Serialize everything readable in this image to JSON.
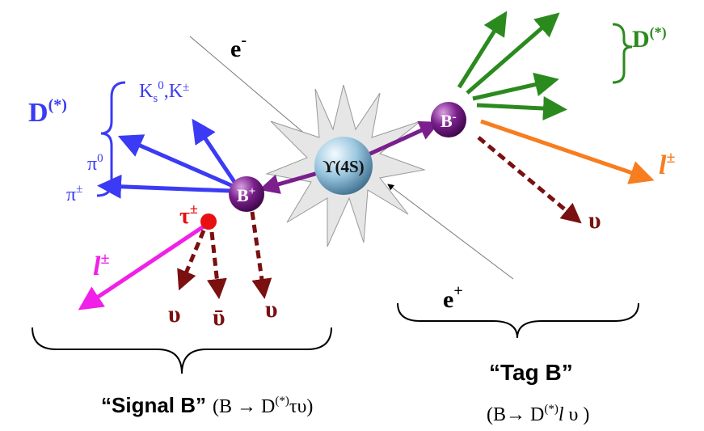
{
  "beams": {
    "electron": {
      "base": "e",
      "sup": "-"
    },
    "positron": {
      "base": "e",
      "sup": "+"
    }
  },
  "resonance": "ϒ(4S)",
  "tag_side": {
    "b_meson": {
      "base": "B",
      "sup": "-"
    },
    "d_star": {
      "base": "D",
      "sup": "(*)"
    },
    "lepton": {
      "base": "l",
      "sup": "±"
    },
    "neutrino": "υ"
  },
  "signal_side": {
    "b_meson": {
      "base": "B",
      "sup": "+"
    },
    "d_star": {
      "base": "D",
      "sup": "(*)"
    },
    "kaons": {
      "k": "K",
      "sub": "s",
      "sup": "0",
      "sep": ",K",
      "sup2": "±"
    },
    "pi0": {
      "base": "π",
      "sup": "0"
    },
    "pi_pm": {
      "base": "π",
      "sup": "±"
    },
    "tau": {
      "base": "τ",
      "sup": "±"
    },
    "lepton": {
      "base": "l",
      "sup": "±"
    },
    "neutrinos": [
      "υ",
      "ῡ",
      "υ"
    ]
  },
  "captions": {
    "signal": {
      "name": "“Signal B”",
      "decay": {
        "pre": "(B → D",
        "sup": "(*)",
        "post": "τυ)"
      }
    },
    "tag": {
      "name": "“Tag B”",
      "decay": {
        "pre": "(B→ D",
        "sup": "(*)",
        "lepton": "l",
        "post": " υ )"
      }
    }
  }
}
